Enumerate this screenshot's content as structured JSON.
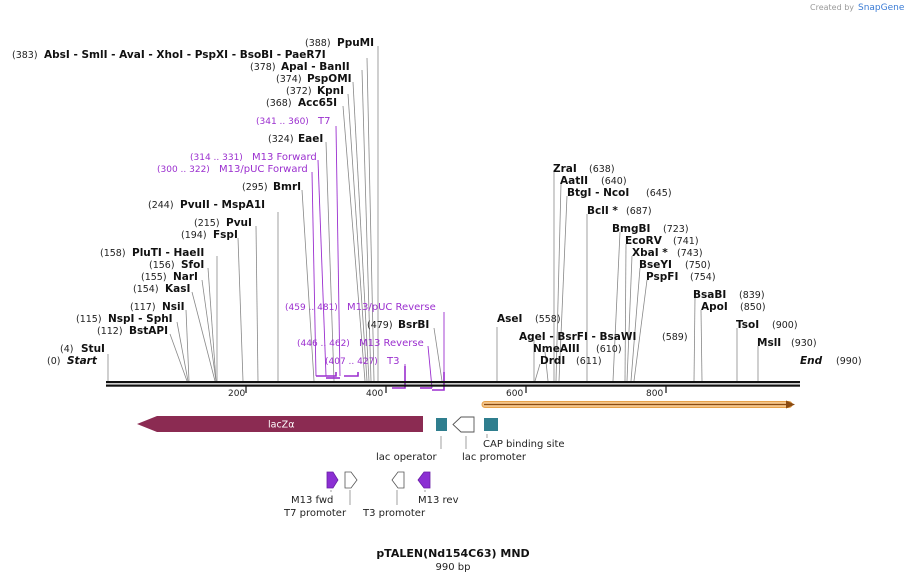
{
  "credit": {
    "prefix": "Created by",
    "brand": "SnapGene"
  },
  "map": {
    "name": "pTALEN(Nd154C63) MND",
    "length_label": "990 bp",
    "start_label": "Start",
    "end_label": "End",
    "start_pos": "(0)",
    "end_pos": "(990)"
  },
  "ticks": [
    "200",
    "400",
    "600",
    "800"
  ],
  "enzymes": [
    {
      "label": "StuI",
      "pos": "(4)"
    },
    {
      "label": "BstAPI",
      "pos": "(112)"
    },
    {
      "label": "NspI  - SphI",
      "pos": "(115)"
    },
    {
      "label": "NsiI",
      "pos": "(117)"
    },
    {
      "label": "KasI",
      "pos": "(154)"
    },
    {
      "label": "NarI",
      "pos": "(155)"
    },
    {
      "label": "SfoI",
      "pos": "(156)"
    },
    {
      "label": "PluTI  - HaeII",
      "pos": "(158)"
    },
    {
      "label": "FspI",
      "pos": "(194)"
    },
    {
      "label": "PvuI",
      "pos": "(215)"
    },
    {
      "label": "PvuII  - MspA1I",
      "pos": "(244)"
    },
    {
      "label": "BmrI",
      "pos": "(295)"
    },
    {
      "label": "EaeI",
      "pos": "(324)"
    },
    {
      "label": "Acc65I",
      "pos": "(368)"
    },
    {
      "label": "KpnI",
      "pos": "(372)"
    },
    {
      "label": "PspOMI",
      "pos": "(374)"
    },
    {
      "label": "ApaI  - BanII",
      "pos": "(378)"
    },
    {
      "label": "AbsI  - SmlI  - AvaI  - XhoI  - PspXI  - BsoBI  - PaeR7I",
      "pos": "(383)"
    },
    {
      "label": "PpuMI",
      "pos": "(388)"
    },
    {
      "label": "BsrBI",
      "pos": "(479)"
    },
    {
      "label": "AseI",
      "pos": "(558)"
    },
    {
      "label": "AgeI  - BsrFI  - BsaWI",
      "pos": "(589)"
    },
    {
      "label": "NmeAIII",
      "pos": "(610)"
    },
    {
      "label": "DrdI",
      "pos": "(611)"
    },
    {
      "label": "ZraI",
      "pos": "(638)"
    },
    {
      "label": "AatII",
      "pos": "(640)"
    },
    {
      "label": "BtgI  - NcoI",
      "pos": "(645)"
    },
    {
      "label": "BclI *",
      "pos": "(687)"
    },
    {
      "label": "BmgBI",
      "pos": "(723)"
    },
    {
      "label": "EcoRV",
      "pos": "(741)"
    },
    {
      "label": "XbaI *",
      "pos": "(743)"
    },
    {
      "label": "BseYI",
      "pos": "(750)"
    },
    {
      "label": "PspFI",
      "pos": "(754)"
    },
    {
      "label": "BsaBI",
      "pos": "(839)"
    },
    {
      "label": "ApoI",
      "pos": "(850)"
    },
    {
      "label": "TsoI",
      "pos": "(900)"
    },
    {
      "label": "MslI",
      "pos": "(930)"
    }
  ],
  "primers": [
    {
      "label": "T7",
      "range": "(341 .. 360)"
    },
    {
      "label": "M13 Forward",
      "range": "(314 .. 331)"
    },
    {
      "label": "M13/pUC Forward",
      "range": "(300 .. 322)"
    },
    {
      "label": "M13/pUC Reverse",
      "range": "(459 .. 481)"
    },
    {
      "label": "M13 Reverse",
      "range": "(446 .. 462)"
    },
    {
      "label": "T3",
      "range": "(407 .. 427)"
    }
  ],
  "features": [
    {
      "label": "lacZα"
    },
    {
      "label": "lac operator"
    },
    {
      "label": "lac promoter"
    },
    {
      "label": "CAP binding site"
    },
    {
      "label": "M13 fwd"
    },
    {
      "label": "T7 promoter"
    },
    {
      "label": "T3 promoter"
    },
    {
      "label": "M13 rev"
    }
  ],
  "colors": {
    "lacz": "#8b2b52",
    "operator": "#2f7e8e",
    "cap": "#2f7e8e",
    "primer": "#9b2fcf",
    "orf": "#f5b66a",
    "brand": "#3a7bd5"
  }
}
